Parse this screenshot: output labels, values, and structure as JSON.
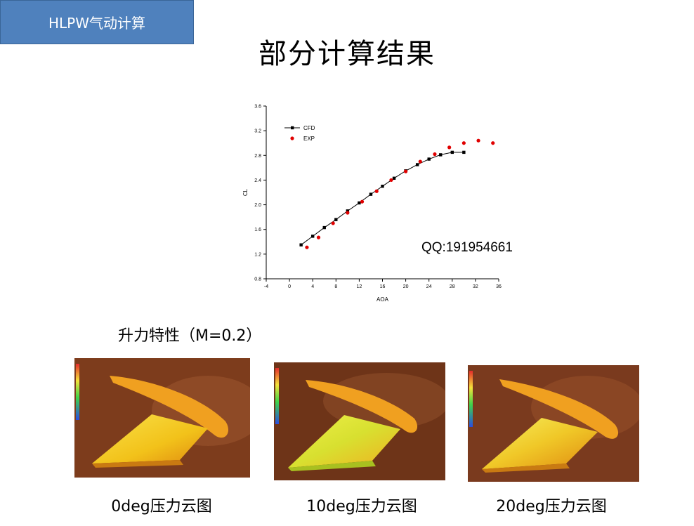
{
  "badge": {
    "text": "HLPW气动计算"
  },
  "title": "部分计算结果",
  "watermark": "QQ:191954661",
  "subtitle": "升力特性（M=0.2）",
  "captions": [
    "0deg压力云图",
    "10deg压力云图",
    "20deg压力云图"
  ],
  "colors": {
    "badge_bg": "#4f81bd",
    "cfd": "#000000",
    "exp": "#e00000",
    "contour_bg": "#7a3a1e",
    "wing": "#f2c21a"
  },
  "chart_data": {
    "type": "scatter",
    "xlabel": "AOA",
    "ylabel": "CL",
    "xlim": [
      -4,
      36
    ],
    "ylim": [
      0.8,
      3.6
    ],
    "xticks": [
      -4,
      0,
      4,
      8,
      12,
      16,
      20,
      24,
      28,
      32,
      36
    ],
    "yticks": [
      0.8,
      1.2,
      1.6,
      2.0,
      2.4,
      2.8,
      3.2,
      3.6
    ],
    "legend_position": "top-left",
    "series": [
      {
        "name": "CFD",
        "style": "line-square",
        "x": [
          2,
          4,
          6,
          8,
          10,
          12,
          14,
          16,
          18,
          20,
          22,
          24,
          26,
          28,
          30
        ],
        "y": [
          1.35,
          1.49,
          1.63,
          1.76,
          1.9,
          2.03,
          2.17,
          2.3,
          2.43,
          2.55,
          2.65,
          2.74,
          2.81,
          2.85,
          2.85
        ]
      },
      {
        "name": "EXP",
        "style": "circle",
        "x": [
          3,
          5,
          7.5,
          10,
          12.5,
          15,
          17.5,
          20,
          22.5,
          25,
          27.5,
          30,
          32.5,
          35
        ],
        "y": [
          1.31,
          1.47,
          1.7,
          1.87,
          2.05,
          2.22,
          2.4,
          2.54,
          2.7,
          2.82,
          2.93,
          3.0,
          3.04,
          3.0
        ]
      }
    ]
  }
}
